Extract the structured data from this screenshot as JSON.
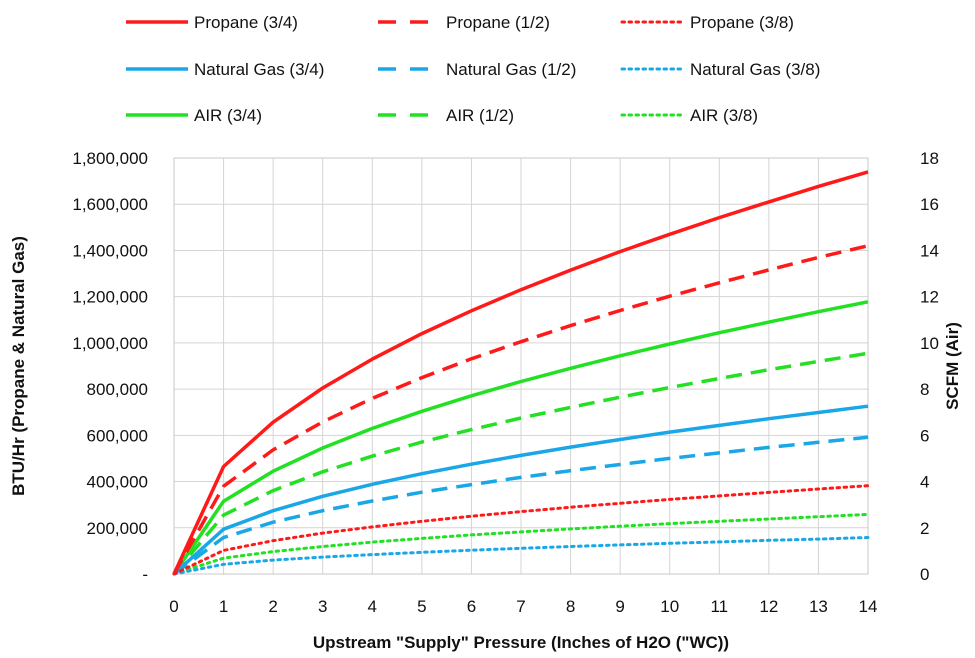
{
  "chart_data": {
    "type": "line",
    "xlabel": "Upstream \"Supply\" Pressure (Inches of H2O (\"WC))",
    "ylabel": "BTU/Hr (Propane & Natural Gas)",
    "y2label": "SCFM (Air)",
    "x_ticks": [
      "0",
      "1",
      "2",
      "3",
      "4",
      "5",
      "6",
      "7",
      "8",
      "9",
      "10",
      "11",
      "12",
      "13",
      "14"
    ],
    "y_ticks": [
      "-",
      "200,000",
      "400,000",
      "600,000",
      "800,000",
      "1,000,000",
      "1,200,000",
      "1,400,000",
      "1,600,000",
      "1,800,000"
    ],
    "y2_ticks": [
      "0",
      "2",
      "4",
      "6",
      "8",
      "10",
      "12",
      "14",
      "16",
      "18"
    ],
    "xlim": [
      0,
      14
    ],
    "ylim": [
      0,
      1800000
    ],
    "y2lim": [
      0,
      18
    ],
    "grid": true,
    "legend_position": "top",
    "x": [
      0,
      1,
      2,
      3,
      4,
      5,
      6,
      7,
      8,
      9,
      10,
      11,
      12,
      13,
      14
    ],
    "series": [
      {
        "name": "Propane (3/4)",
        "axis": "left",
        "color": "#ff1a1a",
        "dash": "solid",
        "values": [
          0,
          465000,
          657000,
          805000,
          930000,
          1040000,
          1139000,
          1230000,
          1315000,
          1395000,
          1470000,
          1542000,
          1610000,
          1677000,
          1740000
        ]
      },
      {
        "name": "Propane (1/2)",
        "axis": "left",
        "color": "#ff1a1a",
        "dash": "dashed",
        "values": [
          0,
          380000,
          537000,
          658000,
          760000,
          850000,
          931000,
          1005000,
          1075000,
          1140000,
          1202000,
          1260000,
          1316000,
          1370000,
          1420000
        ]
      },
      {
        "name": "Propane (3/8)",
        "axis": "left",
        "color": "#ff1a1a",
        "dash": "dotted",
        "values": [
          0,
          102000,
          144000,
          177000,
          204000,
          228000,
          250000,
          270000,
          289000,
          306000,
          323000,
          338000,
          353000,
          368000,
          382000
        ]
      },
      {
        "name": "Natural Gas (3/4)",
        "axis": "left",
        "color": "#1aa7e8",
        "dash": "solid",
        "values": [
          0,
          194000,
          274000,
          336000,
          388000,
          434000,
          475000,
          513000,
          549000,
          582000,
          614000,
          643000,
          672000,
          699000,
          726000
        ]
      },
      {
        "name": "Natural Gas (1/2)",
        "axis": "left",
        "color": "#1aa7e8",
        "dash": "dashed",
        "values": [
          0,
          158000,
          224000,
          274000,
          316000,
          354000,
          387000,
          418000,
          447000,
          474000,
          500000,
          524000,
          548000,
          570000,
          592000
        ]
      },
      {
        "name": "Natural Gas (3/8)",
        "axis": "left",
        "color": "#1aa7e8",
        "dash": "dotted",
        "values": [
          0,
          42000,
          60000,
          73000,
          84000,
          94000,
          103000,
          111000,
          119000,
          126000,
          133000,
          139000,
          146000,
          151000,
          158000
        ]
      },
      {
        "name": "AIR (3/4)",
        "axis": "right",
        "color": "#22e022",
        "dash": "solid",
        "values": [
          0,
          3.15,
          4.45,
          5.45,
          6.3,
          7.04,
          7.71,
          8.33,
          8.9,
          9.44,
          9.95,
          10.44,
          10.9,
          11.35,
          11.78
        ]
      },
      {
        "name": "AIR (1/2)",
        "axis": "right",
        "color": "#22e022",
        "dash": "dashed",
        "values": [
          0,
          2.55,
          3.61,
          4.42,
          5.1,
          5.71,
          6.25,
          6.75,
          7.21,
          7.65,
          8.07,
          8.46,
          8.84,
          9.2,
          9.55
        ]
      },
      {
        "name": "AIR (3/8)",
        "axis": "right",
        "color": "#22e022",
        "dash": "dotted",
        "values": [
          0,
          0.69,
          0.97,
          1.19,
          1.38,
          1.54,
          1.69,
          1.82,
          1.95,
          2.07,
          2.18,
          2.28,
          2.38,
          2.48,
          2.58
        ]
      }
    ]
  }
}
